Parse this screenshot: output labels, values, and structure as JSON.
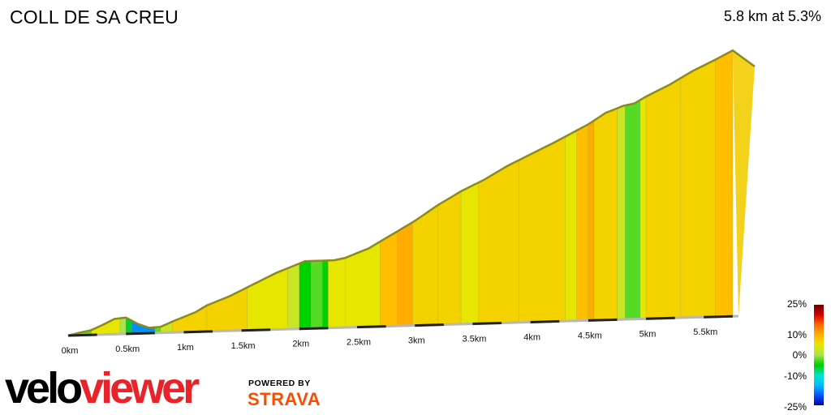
{
  "header": {
    "title": "COLL DE SA CREU",
    "summary": "5.8 km at 5.3%"
  },
  "chart_data": {
    "type": "area",
    "title": "COLL DE SA CREU",
    "xlabel": "",
    "ylabel": "",
    "x_unit": "km",
    "xlim": [
      0,
      5.8
    ],
    "x_ticks": [
      "0km",
      "0.5km",
      "1km",
      "1.5km",
      "2km",
      "2.5km",
      "3km",
      "3.5km",
      "4km",
      "4.5km",
      "5km",
      "5.5km"
    ],
    "x_tick_values": [
      0,
      0.5,
      1,
      1.5,
      2,
      2.5,
      3,
      3.5,
      4,
      4.5,
      5,
      5.5
    ],
    "elevation_profile_relative": [
      [
        0.0,
        0.0
      ],
      [
        0.1,
        0.012
      ],
      [
        0.2,
        0.022
      ],
      [
        0.3,
        0.045
      ],
      [
        0.4,
        0.07
      ],
      [
        0.5,
        0.075
      ],
      [
        0.6,
        0.045
      ],
      [
        0.7,
        0.025
      ],
      [
        0.8,
        0.028
      ],
      [
        0.9,
        0.05
      ],
      [
        1.0,
        0.07
      ],
      [
        1.1,
        0.09
      ],
      [
        1.2,
        0.12
      ],
      [
        1.4,
        0.16
      ],
      [
        1.6,
        0.21
      ],
      [
        1.8,
        0.26
      ],
      [
        2.0,
        0.3
      ],
      [
        2.05,
        0.31
      ],
      [
        2.3,
        0.31
      ],
      [
        2.4,
        0.32
      ],
      [
        2.6,
        0.36
      ],
      [
        2.8,
        0.42
      ],
      [
        3.0,
        0.48
      ],
      [
        3.2,
        0.55
      ],
      [
        3.4,
        0.61
      ],
      [
        3.6,
        0.66
      ],
      [
        3.8,
        0.72
      ],
      [
        4.0,
        0.77
      ],
      [
        4.2,
        0.82
      ],
      [
        4.35,
        0.86
      ],
      [
        4.5,
        0.9
      ],
      [
        4.65,
        0.95
      ],
      [
        4.8,
        0.98
      ],
      [
        4.9,
        0.99
      ],
      [
        5.0,
        1.02
      ],
      [
        5.2,
        1.07
      ],
      [
        5.4,
        1.13
      ],
      [
        5.6,
        1.18
      ],
      [
        5.75,
        1.22
      ]
    ],
    "gradient_segments": [
      {
        "start": 0.0,
        "end": 0.1,
        "gradient": 3
      },
      {
        "start": 0.1,
        "end": 0.2,
        "gradient": 1
      },
      {
        "start": 0.2,
        "end": 0.45,
        "gradient": 4
      },
      {
        "start": 0.45,
        "end": 0.5,
        "gradient": 2
      },
      {
        "start": 0.5,
        "end": 0.55,
        "gradient": -1
      },
      {
        "start": 0.55,
        "end": 0.75,
        "gradient": -8
      },
      {
        "start": 0.75,
        "end": 0.8,
        "gradient": 1
      },
      {
        "start": 0.8,
        "end": 0.9,
        "gradient": 3
      },
      {
        "start": 0.9,
        "end": 1.2,
        "gradient": 5
      },
      {
        "start": 1.2,
        "end": 1.55,
        "gradient": 5
      },
      {
        "start": 1.55,
        "end": 1.9,
        "gradient": 4
      },
      {
        "start": 1.9,
        "end": 2.0,
        "gradient": 3
      },
      {
        "start": 2.0,
        "end": 2.1,
        "gradient": 0
      },
      {
        "start": 2.1,
        "end": 2.2,
        "gradient": 1
      },
      {
        "start": 2.2,
        "end": 2.25,
        "gradient": 0
      },
      {
        "start": 2.25,
        "end": 2.4,
        "gradient": 4
      },
      {
        "start": 2.4,
        "end": 2.7,
        "gradient": 4
      },
      {
        "start": 2.7,
        "end": 2.85,
        "gradient": 6
      },
      {
        "start": 2.85,
        "end": 2.98,
        "gradient": 7
      },
      {
        "start": 2.98,
        "end": 3.2,
        "gradient": 5
      },
      {
        "start": 3.2,
        "end": 3.4,
        "gradient": 5
      },
      {
        "start": 3.4,
        "end": 3.55,
        "gradient": 4
      },
      {
        "start": 3.55,
        "end": 3.9,
        "gradient": 5
      },
      {
        "start": 3.9,
        "end": 4.3,
        "gradient": 5
      },
      {
        "start": 4.3,
        "end": 4.4,
        "gradient": 4
      },
      {
        "start": 4.4,
        "end": 4.5,
        "gradient": 6
      },
      {
        "start": 4.5,
        "end": 4.55,
        "gradient": 7
      },
      {
        "start": 4.55,
        "end": 4.75,
        "gradient": 5
      },
      {
        "start": 4.75,
        "end": 4.82,
        "gradient": 3
      },
      {
        "start": 4.82,
        "end": 4.95,
        "gradient": 1
      },
      {
        "start": 4.95,
        "end": 5.0,
        "gradient": 4
      },
      {
        "start": 5.0,
        "end": 5.3,
        "gradient": 5
      },
      {
        "start": 5.3,
        "end": 5.6,
        "gradient": 5
      },
      {
        "start": 5.6,
        "end": 5.75,
        "gradient": 6
      }
    ],
    "color_scale": {
      "labels": [
        "25%",
        "10%",
        "0%",
        "-10%",
        "-25%"
      ],
      "colors": [
        "#6b0000",
        "#d40000",
        "#ff6a00",
        "#ffb300",
        "#e7e600",
        "#a9e34b",
        "#00cc00",
        "#00e5cc",
        "#00bfff",
        "#0055ff",
        "#0000aa"
      ]
    }
  },
  "branding": {
    "velo": "velo",
    "viewer": "viewer",
    "powered_by": "POWERED BY",
    "strava": "STRAVA"
  }
}
